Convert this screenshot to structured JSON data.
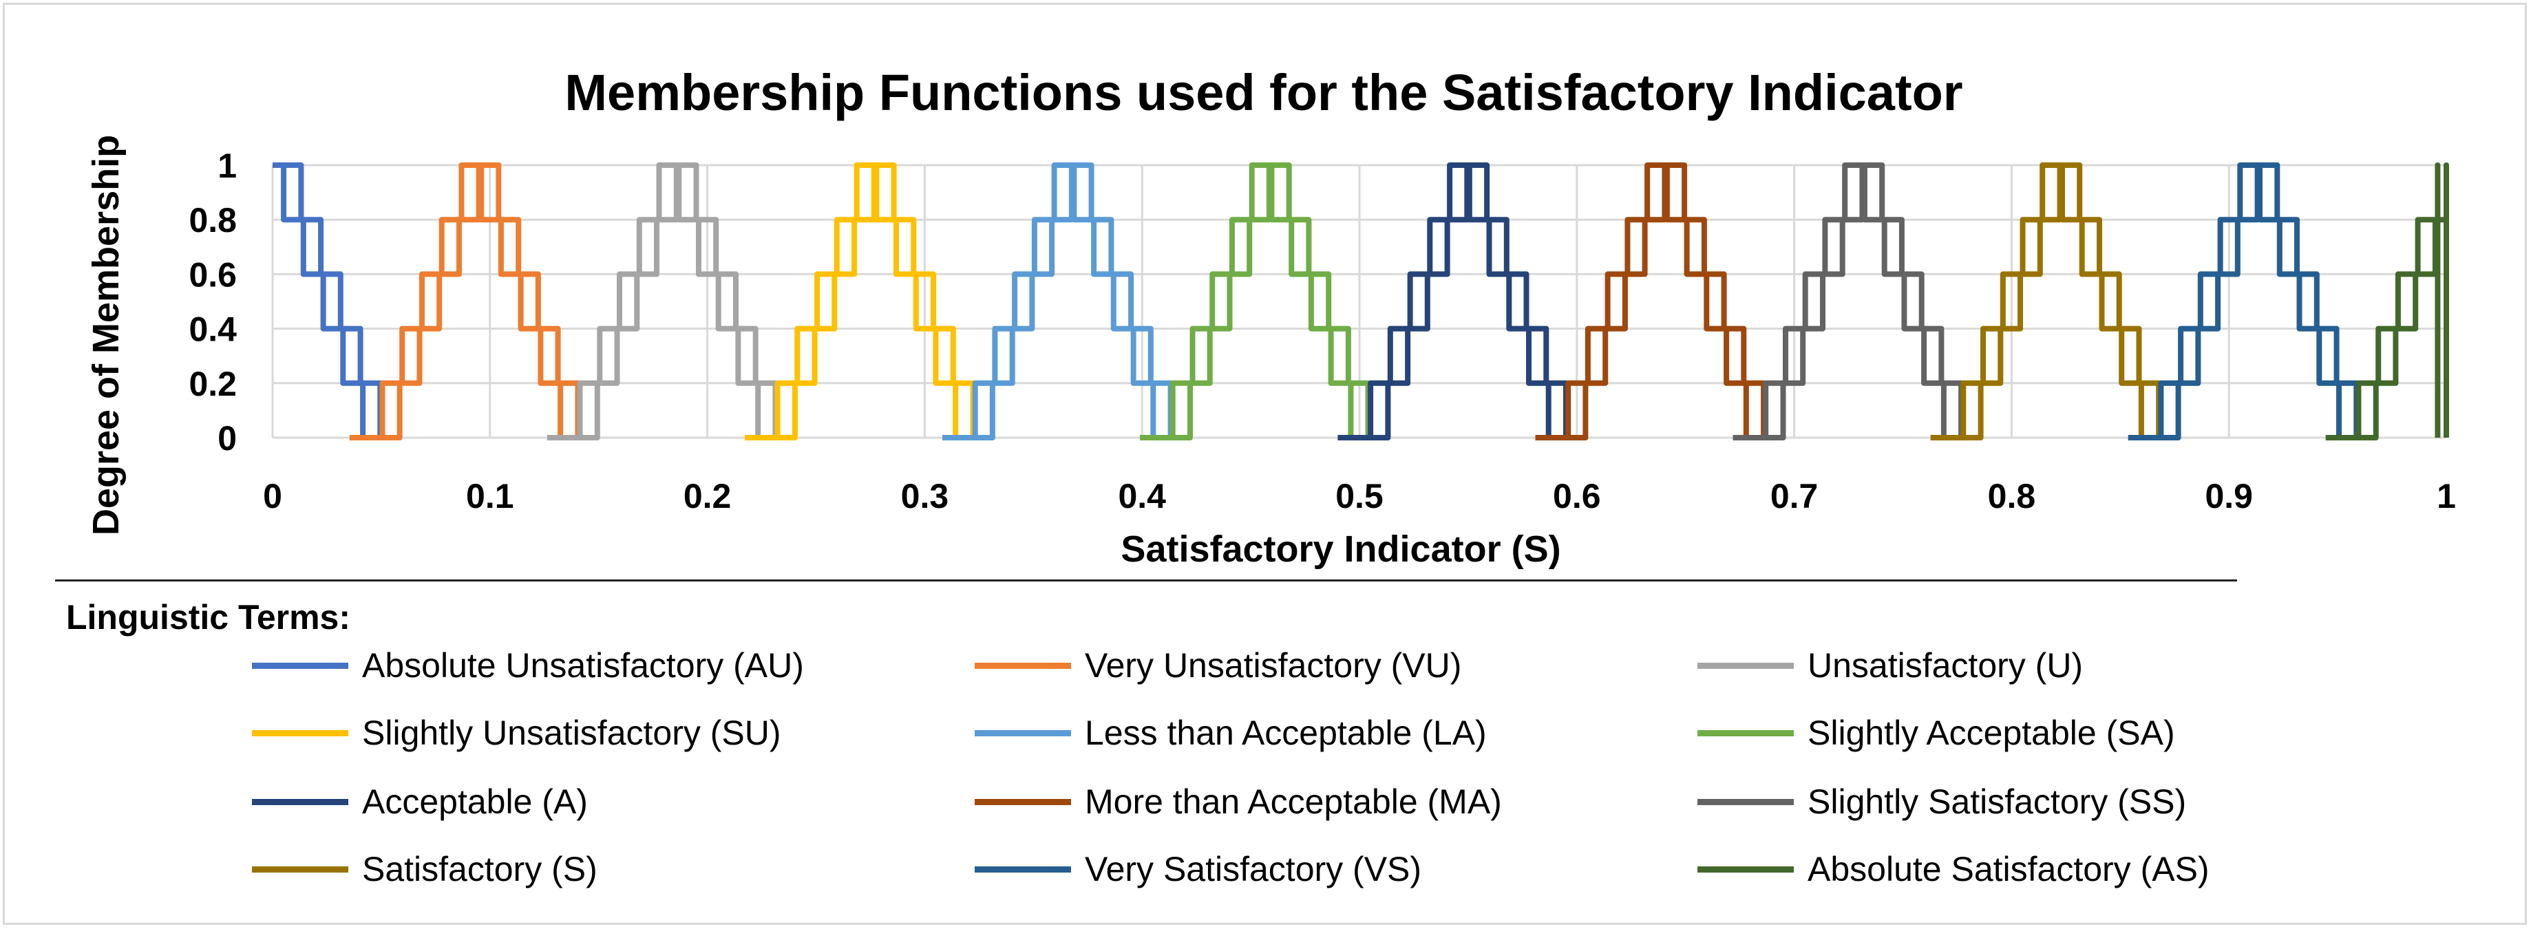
{
  "chart_data": {
    "type": "line",
    "title": "Membership Functions used for the Satisfactory Indicator",
    "xlabel": "Satisfactory Indicator (S)",
    "ylabel": "Degree of Membership",
    "xlim": [
      0,
      1
    ],
    "ylim": [
      0,
      1
    ],
    "xticks": [
      "0",
      "0.1",
      "0.2",
      "0.3",
      "0.4",
      "0.5",
      "0.6",
      "0.7",
      "0.8",
      "0.9",
      "1"
    ],
    "yticks": [
      "0",
      "0.2",
      "0.4",
      "0.6",
      "0.8",
      "1"
    ],
    "grid": true,
    "legend_title": "Linguistic Terms:",
    "series": [
      {
        "name": "Absolute Unsatisfactory (AU)",
        "short": "AU",
        "peak": 0.0,
        "color": "#4472c4"
      },
      {
        "name": "Very Unsatisfactory (VU)",
        "short": "VU",
        "peak": 0.0909,
        "color": "#ed7d31"
      },
      {
        "name": "Unsatisfactory (U)",
        "short": "U",
        "peak": 0.1818,
        "color": "#a5a5a5"
      },
      {
        "name": "Slightly Unsatisfactory (SU)",
        "short": "SU",
        "peak": 0.2727,
        "color": "#ffc000"
      },
      {
        "name": "Less than Acceptable (LA)",
        "short": "LA",
        "peak": 0.3636,
        "color": "#5b9bd5"
      },
      {
        "name": "Slightly Acceptable (SA)",
        "short": "SA",
        "peak": 0.4545,
        "color": "#70ad47"
      },
      {
        "name": "Acceptable (A)",
        "short": "A",
        "peak": 0.5455,
        "color": "#264478"
      },
      {
        "name": "More than Acceptable (MA)",
        "short": "MA",
        "peak": 0.6364,
        "color": "#9e480e"
      },
      {
        "name": "Slightly Satisfactory (SS)",
        "short": "SS",
        "peak": 0.7273,
        "color": "#636363"
      },
      {
        "name": "Satisfactory (S)",
        "short": "S",
        "peak": 0.8182,
        "color": "#997300"
      },
      {
        "name": "Very Satisfactory (VS)",
        "short": "VS",
        "peak": 0.9091,
        "color": "#255e91"
      },
      {
        "name": "Absolute Satisfactory (AS)",
        "short": "AS",
        "peak": 1.0,
        "color": "#43682b"
      }
    ],
    "half_width": 0.0455,
    "levels": [
      0,
      0.2,
      0.4,
      0.6,
      0.8,
      1
    ]
  }
}
